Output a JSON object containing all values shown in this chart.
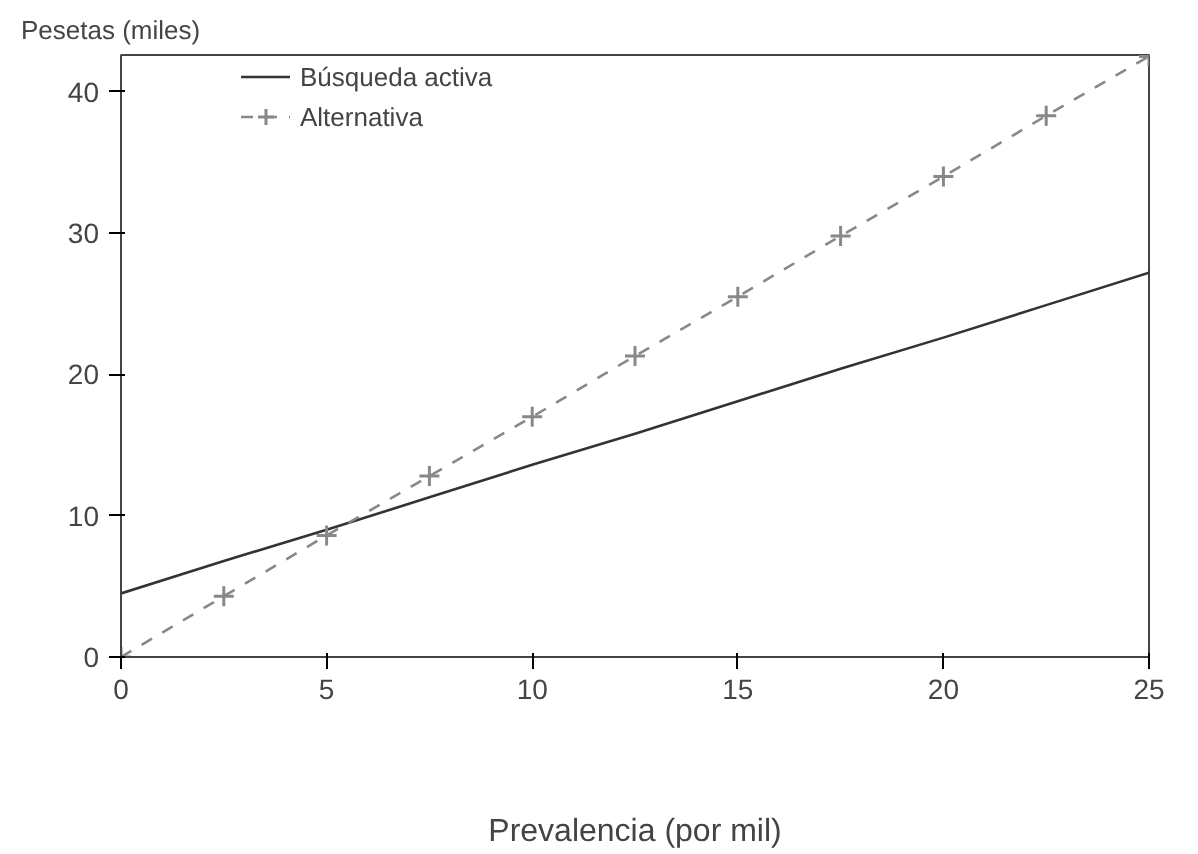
{
  "chart_data": {
    "type": "line",
    "ylabel": "Pesetas (miles)",
    "xlabel": "Prevalencia (por mil)",
    "x": [
      0,
      2.5,
      5,
      7.5,
      10,
      12.5,
      15,
      17.5,
      20,
      22.5,
      25
    ],
    "series": [
      {
        "name": "Búsqueda activa",
        "color": "#333333",
        "line_style": "solid",
        "values": [
          4.5,
          6.8,
          9,
          11.3,
          13.6,
          15.8,
          18.1,
          20.4,
          22.6,
          24.9,
          27.2
        ]
      },
      {
        "name": "Alternativa",
        "color": "#888888",
        "line_style": "dashed",
        "marker": "cross",
        "values": [
          0,
          4.3,
          8.6,
          12.8,
          17,
          21.3,
          25.5,
          29.8,
          34,
          38.3,
          42.5
        ]
      }
    ],
    "xlim": [
      0,
      25
    ],
    "ylim": [
      0,
      42.6
    ],
    "xticks": [
      0,
      5,
      10,
      15,
      20,
      25
    ],
    "yticks": [
      0,
      10,
      20,
      30,
      40
    ],
    "grid": false,
    "legend": "top left"
  }
}
